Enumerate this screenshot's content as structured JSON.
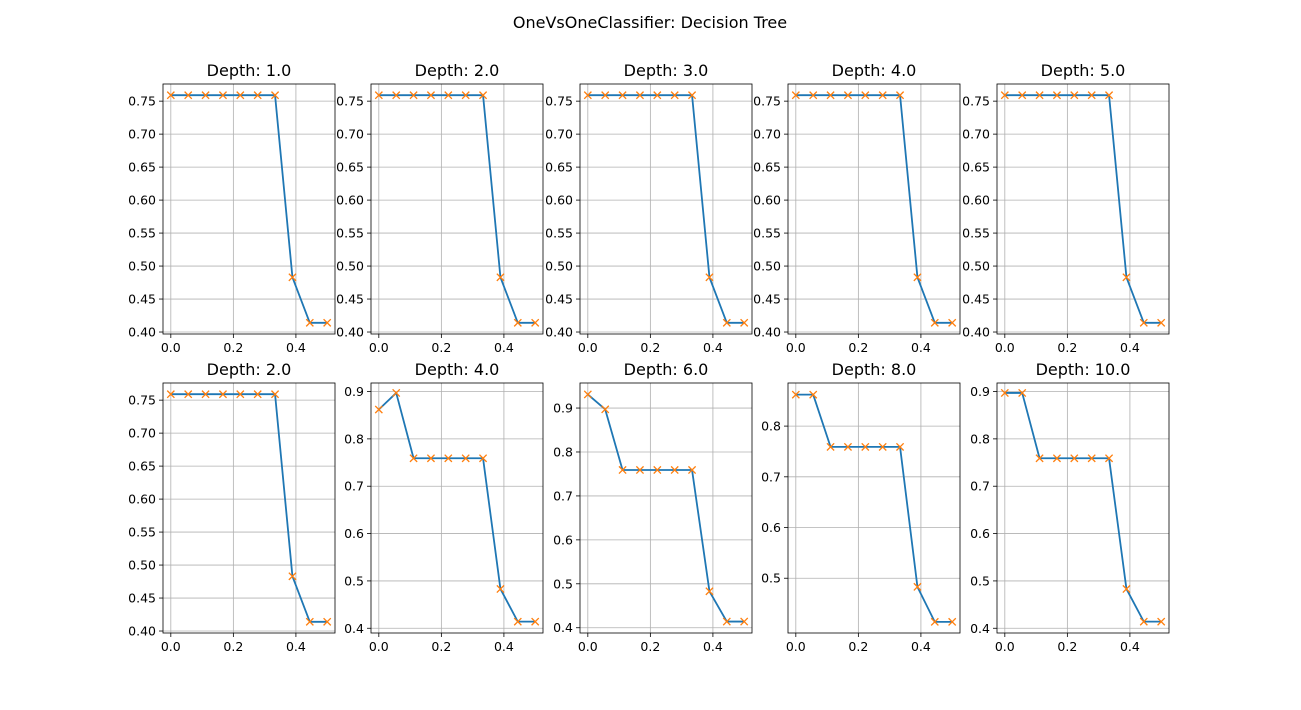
{
  "figure": {
    "title": "OneVsOneClassifier: Decision Tree",
    "line_color": "#1f77b4",
    "marker_color": "#ff7f0e",
    "grid_color": "#b0b0b0"
  },
  "chart_data": [
    {
      "type": "line",
      "title": "Depth: 1.0",
      "grid": true,
      "marker": "x",
      "x": [
        0.0,
        0.0556,
        0.1111,
        0.1667,
        0.2222,
        0.2778,
        0.3333,
        0.3889,
        0.4444,
        0.5
      ],
      "y": [
        0.759,
        0.759,
        0.759,
        0.759,
        0.759,
        0.759,
        0.759,
        0.483,
        0.414,
        0.414
      ],
      "xlim": [
        -0.025,
        0.525
      ],
      "ylim": [
        0.397,
        0.776
      ],
      "xticks": [
        0.0,
        0.2,
        0.4
      ],
      "xticklabels": [
        "0.0",
        "0.2",
        "0.4"
      ],
      "yticks": [
        0.4,
        0.45,
        0.5,
        0.55,
        0.6,
        0.65,
        0.7,
        0.75
      ],
      "yticklabels": [
        "0.40",
        "0.45",
        "0.50",
        "0.55",
        "0.60",
        "0.65",
        "0.70",
        "0.75"
      ]
    },
    {
      "type": "line",
      "title": "Depth: 2.0",
      "grid": true,
      "marker": "x",
      "x": [
        0.0,
        0.0556,
        0.1111,
        0.1667,
        0.2222,
        0.2778,
        0.3333,
        0.3889,
        0.4444,
        0.5
      ],
      "y": [
        0.759,
        0.759,
        0.759,
        0.759,
        0.759,
        0.759,
        0.759,
        0.483,
        0.414,
        0.414
      ],
      "xlim": [
        -0.025,
        0.525
      ],
      "ylim": [
        0.397,
        0.776
      ],
      "xticks": [
        0.0,
        0.2,
        0.4
      ],
      "xticklabels": [
        "0.0",
        "0.2",
        "0.4"
      ],
      "yticks": [
        0.4,
        0.45,
        0.5,
        0.55,
        0.6,
        0.65,
        0.7,
        0.75
      ],
      "yticklabels": [
        "0.40",
        "0.45",
        "0.50",
        "0.55",
        "0.60",
        "0.65",
        "0.70",
        "0.75"
      ]
    },
    {
      "type": "line",
      "title": "Depth: 3.0",
      "grid": true,
      "marker": "x",
      "x": [
        0.0,
        0.0556,
        0.1111,
        0.1667,
        0.2222,
        0.2778,
        0.3333,
        0.3889,
        0.4444,
        0.5
      ],
      "y": [
        0.759,
        0.759,
        0.759,
        0.759,
        0.759,
        0.759,
        0.759,
        0.483,
        0.414,
        0.414
      ],
      "xlim": [
        -0.025,
        0.525
      ],
      "ylim": [
        0.397,
        0.776
      ],
      "xticks": [
        0.0,
        0.2,
        0.4
      ],
      "xticklabels": [
        "0.0",
        "0.2",
        "0.4"
      ],
      "yticks": [
        0.4,
        0.45,
        0.5,
        0.55,
        0.6,
        0.65,
        0.7,
        0.75
      ],
      "yticklabels": [
        "0.40",
        "0.45",
        "0.50",
        "0.55",
        "0.60",
        "0.65",
        "0.70",
        "0.75"
      ]
    },
    {
      "type": "line",
      "title": "Depth: 4.0",
      "grid": true,
      "marker": "x",
      "x": [
        0.0,
        0.0556,
        0.1111,
        0.1667,
        0.2222,
        0.2778,
        0.3333,
        0.3889,
        0.4444,
        0.5
      ],
      "y": [
        0.759,
        0.759,
        0.759,
        0.759,
        0.759,
        0.759,
        0.759,
        0.483,
        0.414,
        0.414
      ],
      "xlim": [
        -0.025,
        0.525
      ],
      "ylim": [
        0.397,
        0.776
      ],
      "xticks": [
        0.0,
        0.2,
        0.4
      ],
      "xticklabels": [
        "0.0",
        "0.2",
        "0.4"
      ],
      "yticks": [
        0.4,
        0.45,
        0.5,
        0.55,
        0.6,
        0.65,
        0.7,
        0.75
      ],
      "yticklabels": [
        "0.40",
        "0.45",
        "0.50",
        "0.55",
        "0.60",
        "0.65",
        "0.70",
        "0.75"
      ]
    },
    {
      "type": "line",
      "title": "Depth: 5.0",
      "grid": true,
      "marker": "x",
      "x": [
        0.0,
        0.0556,
        0.1111,
        0.1667,
        0.2222,
        0.2778,
        0.3333,
        0.3889,
        0.4444,
        0.5
      ],
      "y": [
        0.759,
        0.759,
        0.759,
        0.759,
        0.759,
        0.759,
        0.759,
        0.483,
        0.414,
        0.414
      ],
      "xlim": [
        -0.025,
        0.525
      ],
      "ylim": [
        0.397,
        0.776
      ],
      "xticks": [
        0.0,
        0.2,
        0.4
      ],
      "xticklabels": [
        "0.0",
        "0.2",
        "0.4"
      ],
      "yticks": [
        0.4,
        0.45,
        0.5,
        0.55,
        0.6,
        0.65,
        0.7,
        0.75
      ],
      "yticklabels": [
        "0.40",
        "0.45",
        "0.50",
        "0.55",
        "0.60",
        "0.65",
        "0.70",
        "0.75"
      ]
    },
    {
      "type": "line",
      "title": "Depth: 2.0",
      "grid": true,
      "marker": "x",
      "x": [
        0.0,
        0.0556,
        0.1111,
        0.1667,
        0.2222,
        0.2778,
        0.3333,
        0.3889,
        0.4444,
        0.5
      ],
      "y": [
        0.759,
        0.759,
        0.759,
        0.759,
        0.759,
        0.759,
        0.759,
        0.483,
        0.414,
        0.414
      ],
      "xlim": [
        -0.025,
        0.525
      ],
      "ylim": [
        0.397,
        0.776
      ],
      "xticks": [
        0.0,
        0.2,
        0.4
      ],
      "xticklabels": [
        "0.0",
        "0.2",
        "0.4"
      ],
      "yticks": [
        0.4,
        0.45,
        0.5,
        0.55,
        0.6,
        0.65,
        0.7,
        0.75
      ],
      "yticklabels": [
        "0.40",
        "0.45",
        "0.50",
        "0.55",
        "0.60",
        "0.65",
        "0.70",
        "0.75"
      ]
    },
    {
      "type": "line",
      "title": "Depth: 4.0",
      "grid": true,
      "marker": "x",
      "x": [
        0.0,
        0.0556,
        0.1111,
        0.1667,
        0.2222,
        0.2778,
        0.3333,
        0.3889,
        0.4444,
        0.5
      ],
      "y": [
        0.862,
        0.897,
        0.759,
        0.759,
        0.759,
        0.759,
        0.759,
        0.483,
        0.414,
        0.414
      ],
      "xlim": [
        -0.025,
        0.525
      ],
      "ylim": [
        0.39,
        0.918
      ],
      "xticks": [
        0.0,
        0.2,
        0.4
      ],
      "xticklabels": [
        "0.0",
        "0.2",
        "0.4"
      ],
      "yticks": [
        0.4,
        0.5,
        0.6,
        0.7,
        0.8,
        0.9
      ],
      "yticklabels": [
        "0.4",
        "0.5",
        "0.6",
        "0.7",
        "0.8",
        "0.9"
      ]
    },
    {
      "type": "line",
      "title": "Depth: 6.0",
      "grid": true,
      "marker": "x",
      "x": [
        0.0,
        0.0556,
        0.1111,
        0.1667,
        0.2222,
        0.2778,
        0.3333,
        0.3889,
        0.4444,
        0.5
      ],
      "y": [
        0.931,
        0.897,
        0.759,
        0.759,
        0.759,
        0.759,
        0.759,
        0.483,
        0.414,
        0.414
      ],
      "xlim": [
        -0.025,
        0.525
      ],
      "ylim": [
        0.388,
        0.957
      ],
      "xticks": [
        0.0,
        0.2,
        0.4
      ],
      "xticklabels": [
        "0.0",
        "0.2",
        "0.4"
      ],
      "yticks": [
        0.4,
        0.5,
        0.6,
        0.7,
        0.8,
        0.9
      ],
      "yticklabels": [
        "0.4",
        "0.5",
        "0.6",
        "0.7",
        "0.8",
        "0.9"
      ]
    },
    {
      "type": "line",
      "title": "Depth: 8.0",
      "grid": true,
      "marker": "x",
      "x": [
        0.0,
        0.0556,
        0.1111,
        0.1667,
        0.2222,
        0.2778,
        0.3333,
        0.3889,
        0.4444,
        0.5
      ],
      "y": [
        0.862,
        0.862,
        0.759,
        0.759,
        0.759,
        0.759,
        0.759,
        0.483,
        0.414,
        0.414
      ],
      "xlim": [
        -0.025,
        0.525
      ],
      "ylim": [
        0.392,
        0.885
      ],
      "xticks": [
        0.0,
        0.2,
        0.4
      ],
      "xticklabels": [
        "0.0",
        "0.2",
        "0.4"
      ],
      "yticks": [
        0.5,
        0.6,
        0.7,
        0.8
      ],
      "yticklabels": [
        "0.5",
        "0.6",
        "0.7",
        "0.8"
      ]
    },
    {
      "type": "line",
      "title": "Depth: 10.0",
      "grid": true,
      "marker": "x",
      "x": [
        0.0,
        0.0556,
        0.1111,
        0.1667,
        0.2222,
        0.2778,
        0.3333,
        0.3889,
        0.4444,
        0.5
      ],
      "y": [
        0.897,
        0.897,
        0.759,
        0.759,
        0.759,
        0.759,
        0.759,
        0.483,
        0.414,
        0.414
      ],
      "xlim": [
        -0.025,
        0.525
      ],
      "ylim": [
        0.39,
        0.918
      ],
      "xticks": [
        0.0,
        0.2,
        0.4
      ],
      "xticklabels": [
        "0.0",
        "0.2",
        "0.4"
      ],
      "yticks": [
        0.4,
        0.5,
        0.6,
        0.7,
        0.8,
        0.9
      ],
      "yticklabels": [
        "0.4",
        "0.5",
        "0.6",
        "0.7",
        "0.8",
        "0.9"
      ]
    }
  ]
}
